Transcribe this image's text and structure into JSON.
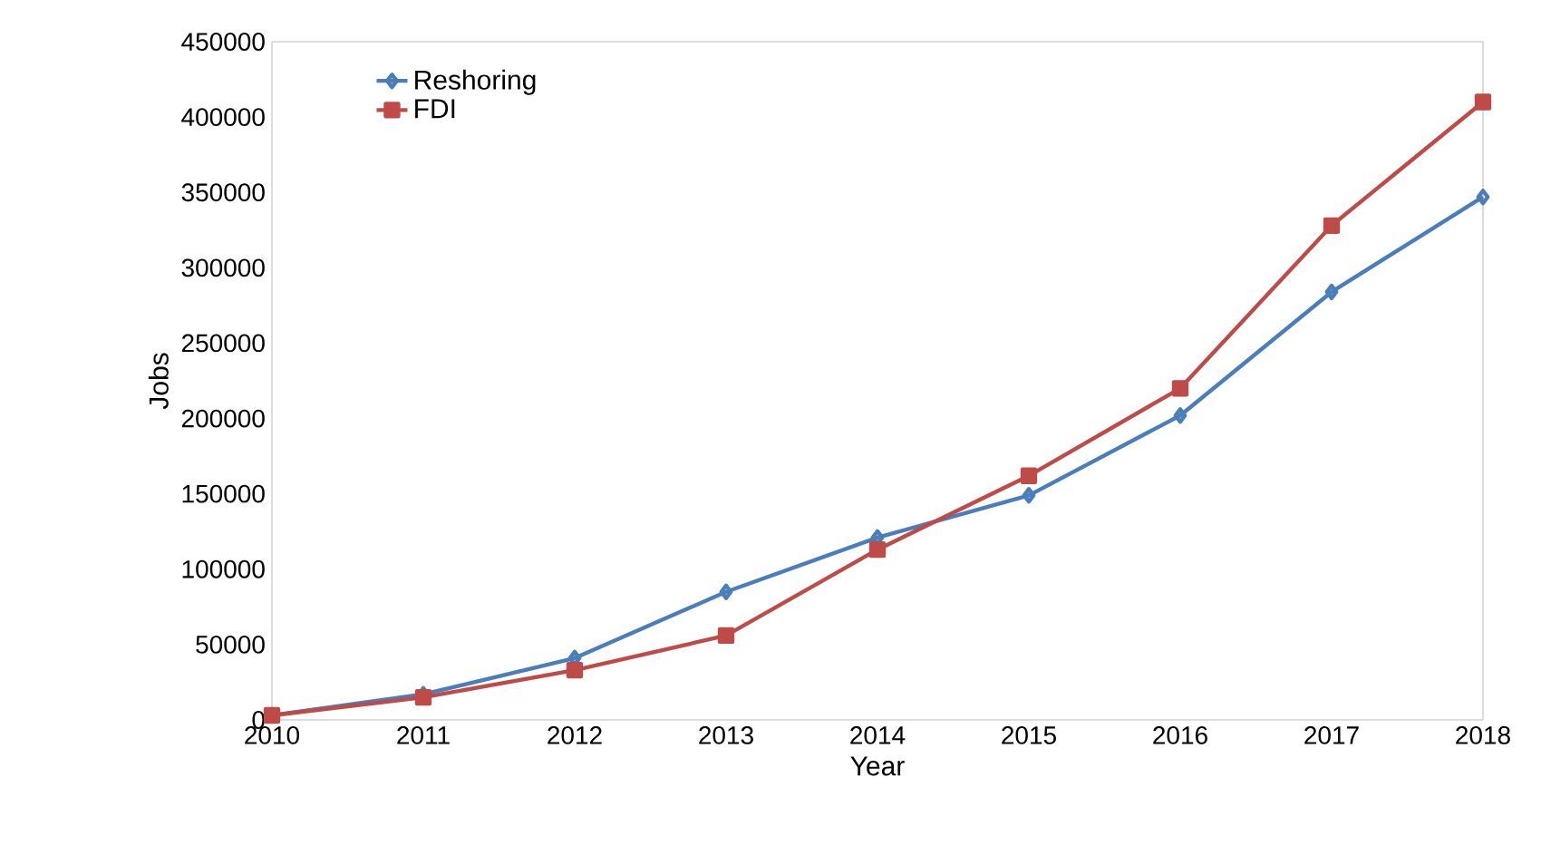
{
  "chart_data": {
    "type": "line",
    "xlabel": "Year",
    "ylabel": "Jobs",
    "x": [
      2010,
      2011,
      2012,
      2013,
      2014,
      2015,
      2016,
      2017,
      2018
    ],
    "xlim": [
      2010,
      2018
    ],
    "xticks": [
      2010,
      2011,
      2012,
      2013,
      2014,
      2015,
      2016,
      2017,
      2018
    ],
    "ylim": [
      0,
      450000
    ],
    "yticks": [
      0,
      50000,
      100000,
      150000,
      200000,
      250000,
      300000,
      350000,
      400000,
      450000
    ],
    "grid": false,
    "legend": "top left",
    "line_style": "solid",
    "series": [
      {
        "name": "Reshoring",
        "color": "#4a7ebb",
        "marker": "diamond",
        "values": [
          3000,
          17000,
          41000,
          85000,
          121000,
          149000,
          202000,
          284000,
          347000
        ]
      },
      {
        "name": "FDI",
        "color": "#be4b48",
        "marker": "square",
        "values": [
          3000,
          15000,
          33000,
          56000,
          113000,
          162000,
          220000,
          328000,
          410000
        ]
      }
    ]
  }
}
